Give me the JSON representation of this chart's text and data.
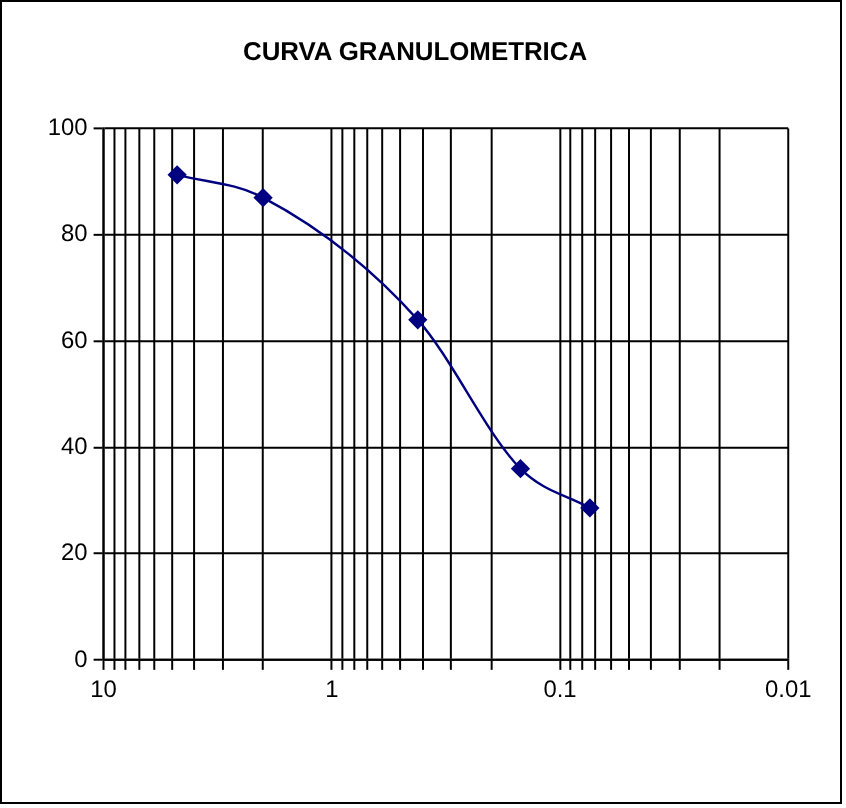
{
  "chart_data": {
    "type": "line",
    "title": "CURVA GRANULOMETRICA",
    "x": [
      4.76,
      2.0,
      0.42,
      0.149,
      0.074
    ],
    "series": [
      {
        "color": "#000080",
        "values": [
          91.3,
          87,
          64,
          36,
          28.6
        ]
      }
    ],
    "log": "x",
    "xlim": [
      10,
      0.01
    ],
    "xticks": [
      10,
      {
        "value": 9,
        "label": null
      },
      {
        "value": 8,
        "label": null
      },
      {
        "value": 7,
        "label": null
      },
      {
        "value": 6,
        "label": null
      },
      {
        "value": 5,
        "label": null
      },
      {
        "value": 4,
        "label": null
      },
      {
        "value": 3,
        "label": null
      },
      {
        "value": 2,
        "label": null
      },
      1,
      {
        "value": 0.9,
        "label": null
      },
      {
        "value": 0.8,
        "label": null
      },
      {
        "value": 0.7,
        "label": null
      },
      {
        "value": 0.6,
        "label": null
      },
      {
        "value": 0.5,
        "label": null
      },
      {
        "value": 0.4,
        "label": null
      },
      {
        "value": 0.3,
        "label": null
      },
      {
        "value": 0.2,
        "label": null
      },
      0.1,
      {
        "value": 0.09,
        "label": null
      },
      {
        "value": 0.08,
        "label": null
      },
      {
        "value": 0.07,
        "label": null
      },
      {
        "value": 0.06,
        "label": null
      },
      {
        "value": 0.05,
        "label": null
      },
      {
        "value": 0.04,
        "label": null
      },
      {
        "value": 0.03,
        "label": null
      },
      {
        "value": 0.02,
        "label": null
      },
      0.01
    ],
    "ylim": [
      0,
      100
    ],
    "yticks": [
      0,
      20,
      40,
      60,
      80,
      100
    ],
    "grid": true,
    "legend": false,
    "marker": "diamond",
    "line_style": "solid"
  }
}
